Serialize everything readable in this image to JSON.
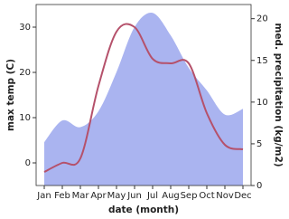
{
  "chart_data": {
    "type": "line",
    "categories": [
      "Jan",
      "Feb",
      "Mar",
      "Apr",
      "May",
      "Jun",
      "Jul",
      "Aug",
      "Sep",
      "Oct",
      "Nov",
      "Dec"
    ],
    "x_label": "date (month)",
    "y_label": "max temp (C)",
    "y2_label": "med. precipitation (kg/m2)",
    "ylim": [
      -5,
      35
    ],
    "yticks": [
      0,
      10,
      20,
      30
    ],
    "y2lim": [
      0,
      21.7
    ],
    "y2ticks": [
      0,
      5,
      10,
      15,
      20
    ],
    "series": [
      {
        "type": "line",
        "color": "#b5516b",
        "values": [
          -2,
          0,
          1,
          17,
          29,
          30,
          23,
          22,
          22,
          11,
          4,
          3
        ]
      },
      {
        "type": "area",
        "axis": "y2",
        "color": "#aab4f0",
        "values": [
          5.2,
          7.8,
          7,
          8.9,
          13.6,
          19,
          20.7,
          18,
          14.1,
          11.4,
          8.5,
          9.2
        ]
      }
    ]
  }
}
